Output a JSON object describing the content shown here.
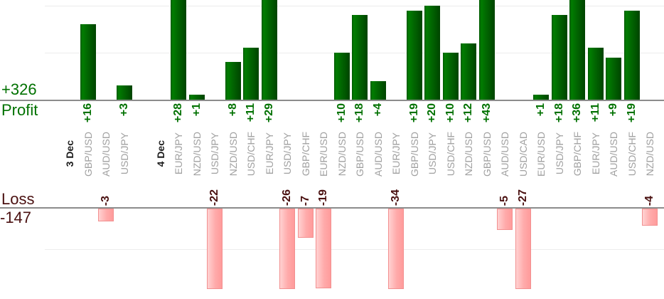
{
  "chart_data": {
    "type": "bar",
    "description": "Per-trade forex profit/loss bar chart split into a profit panel (green, top) and loss panel (pink, bottom), grouped by date",
    "profit": {
      "total_label": "+326",
      "axis_label": "Profit",
      "total": 326
    },
    "loss": {
      "total_label": "-147",
      "axis_label": "Loss",
      "total": -147
    },
    "grid": {
      "profit_gridline_units": [
        10,
        20
      ],
      "loss_gridline_units": [
        -10
      ],
      "gridlines_visible": true
    },
    "ylim_profit_visible": [
      0,
      21
    ],
    "ylim_loss_visible": [
      0,
      -19
    ],
    "slots": [
      {
        "kind": "date",
        "label": "3 Dec"
      },
      {
        "kind": "trade",
        "pair": "GBP/USD",
        "value": 16
      },
      {
        "kind": "trade",
        "pair": "AUD/USD",
        "value": -3
      },
      {
        "kind": "trade",
        "pair": "USD/JPY",
        "value": 3
      },
      {
        "kind": "gap"
      },
      {
        "kind": "date",
        "label": "4 Dec"
      },
      {
        "kind": "trade",
        "pair": "EUR/JPY",
        "value": 28
      },
      {
        "kind": "trade",
        "pair": "NZD/USD",
        "value": 1
      },
      {
        "kind": "trade",
        "pair": "USD/JPY",
        "value": -22
      },
      {
        "kind": "trade",
        "pair": "NZD/USD",
        "value": 8
      },
      {
        "kind": "trade",
        "pair": "USD/CHF",
        "value": 11
      },
      {
        "kind": "trade",
        "pair": "EUR/JPY",
        "value": 29
      },
      {
        "kind": "trade",
        "pair": "USD/JPY",
        "value": -26
      },
      {
        "kind": "trade",
        "pair": "GBP/CHF",
        "value": -7
      },
      {
        "kind": "trade",
        "pair": "EUR/USD",
        "value": -19
      },
      {
        "kind": "trade",
        "pair": "NZD/USD",
        "value": 10
      },
      {
        "kind": "trade",
        "pair": "GBP/USD",
        "value": 18
      },
      {
        "kind": "trade",
        "pair": "AUD/USD",
        "value": 4
      },
      {
        "kind": "trade",
        "pair": "EUR/JPY",
        "value": -34
      },
      {
        "kind": "trade",
        "pair": "GBP/USD",
        "value": 19
      },
      {
        "kind": "trade",
        "pair": "USD/JPY",
        "value": 20
      },
      {
        "kind": "trade",
        "pair": "USD/CHF",
        "value": 10
      },
      {
        "kind": "trade",
        "pair": "NZD/USD",
        "value": 12
      },
      {
        "kind": "trade",
        "pair": "GBP/USD",
        "value": 43
      },
      {
        "kind": "trade",
        "pair": "AUD/USD",
        "value": -5
      },
      {
        "kind": "trade",
        "pair": "USD/CAD",
        "value": -27
      },
      {
        "kind": "trade",
        "pair": "EUR/USD",
        "value": 1
      },
      {
        "kind": "trade",
        "pair": "USD/JPY",
        "value": 18
      },
      {
        "kind": "trade",
        "pair": "GBP/CHF",
        "value": 36
      },
      {
        "kind": "trade",
        "pair": "EUR/JPY",
        "value": 11
      },
      {
        "kind": "trade",
        "pair": "AUD/USD",
        "value": 9
      },
      {
        "kind": "trade",
        "pair": "USD/CHF",
        "value": 19
      },
      {
        "kind": "trade",
        "pair": "NZD/USD",
        "value": -4
      }
    ],
    "colors": {
      "green_edge": "#015901",
      "green_bright": "#017d01",
      "green_mid": "#016701",
      "green_dark": "#004400",
      "pink_light": "#ffd2d2",
      "pink_mid": "#ffaaaa",
      "pink_dark": "#ff9b9b",
      "pink_border": "#f29090",
      "profit_text": "#007100",
      "loss_text": "#4a1010",
      "pair_text": "#a0a0a0",
      "date_text": "#1c1c1c",
      "axis_line": "#8c8c8c",
      "gridline": "#ececec"
    }
  }
}
